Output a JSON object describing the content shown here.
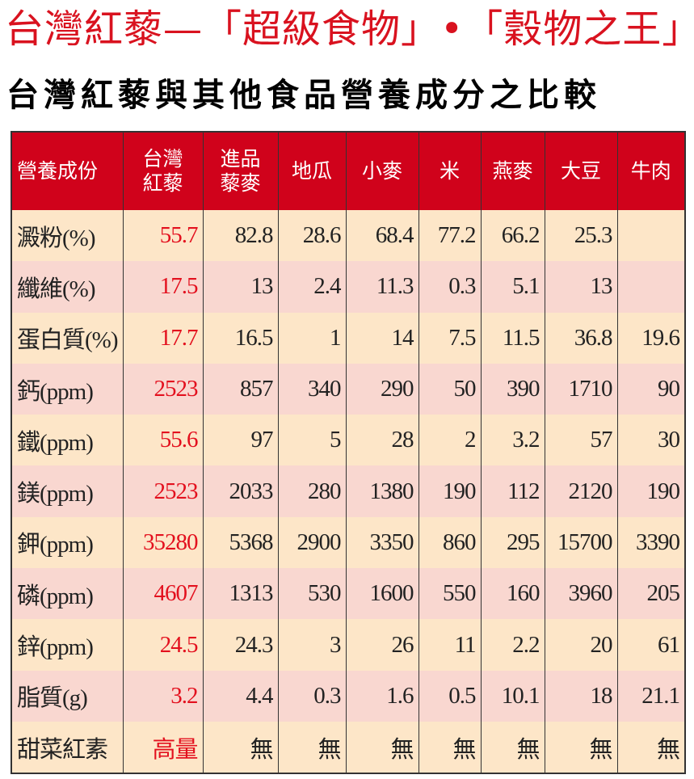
{
  "title": "台灣紅藜—「超級食物」•「穀物之王」",
  "subtitle": "台灣紅藜與其他食品營養成分之比較",
  "colors": {
    "header": "#d0021b",
    "highlight": "#e3101e",
    "row_odd": "#fde6c8",
    "row_even": "#f9d7d0"
  },
  "table": {
    "headers": [
      [
        "營養成份"
      ],
      [
        "台灣",
        "紅藜"
      ],
      [
        "進品",
        "藜麥"
      ],
      [
        "地瓜"
      ],
      [
        "小麥"
      ],
      [
        "米"
      ],
      [
        "燕麥"
      ],
      [
        "大豆"
      ],
      [
        "牛肉"
      ]
    ],
    "rows": [
      [
        "澱粉(%)",
        "55.7",
        "82.8",
        "28.6",
        "68.4",
        "77.2",
        "66.2",
        "25.3",
        ""
      ],
      [
        "纖維(%)",
        "17.5",
        "13",
        "2.4",
        "11.3",
        "0.3",
        "5.1",
        "13",
        ""
      ],
      [
        "蛋白質(%)",
        "17.7",
        "16.5",
        "1",
        "14",
        "7.5",
        "11.5",
        "36.8",
        "19.6"
      ],
      [
        "鈣(ppm)",
        "2523",
        "857",
        "340",
        "290",
        "50",
        "390",
        "1710",
        "90"
      ],
      [
        "鐵(ppm)",
        "55.6",
        "97",
        "5",
        "28",
        "2",
        "3.2",
        "57",
        "30"
      ],
      [
        "鎂(ppm)",
        "2523",
        "2033",
        "280",
        "1380",
        "190",
        "112",
        "2120",
        "190"
      ],
      [
        "鉀(ppm)",
        "35280",
        "5368",
        "2900",
        "3350",
        "860",
        "295",
        "15700",
        "3390"
      ],
      [
        "磷(ppm)",
        "4607",
        "1313",
        "530",
        "1600",
        "550",
        "160",
        "3960",
        "205"
      ],
      [
        "鋅(ppm)",
        "24.5",
        "24.3",
        "3",
        "26",
        "11",
        "2.2",
        "20",
        "61"
      ],
      [
        "脂質(g)",
        "3.2",
        "4.4",
        "0.3",
        "1.6",
        "0.5",
        "10.1",
        "18",
        "21.1"
      ],
      [
        "甜菜紅素",
        "高量",
        "無",
        "無",
        "無",
        "無",
        "無",
        "無",
        "無"
      ]
    ]
  }
}
